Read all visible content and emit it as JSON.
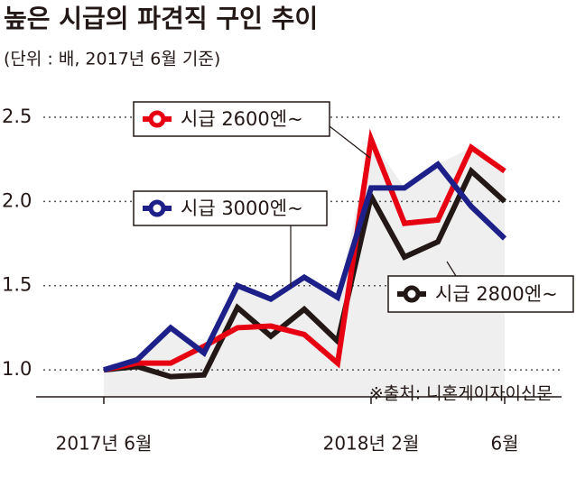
{
  "chart_data": {
    "type": "line",
    "title": "높은 시급의 파견직 구인 추이",
    "subtitle": "(단위 : 배, 2017년 6월 기준)",
    "source": "※출처: 니혼게이자이신문",
    "categories": [
      "2017년 6월",
      null,
      null,
      null,
      null,
      null,
      null,
      null,
      "2018년 2월",
      null,
      null,
      null,
      "6월"
    ],
    "series": [
      {
        "name": "시급 2800엔~",
        "color": "#231815",
        "values": [
          1.0,
          1.02,
          0.96,
          0.97,
          1.37,
          1.2,
          1.36,
          1.17,
          2.03,
          1.67,
          1.76,
          2.18,
          2.0
        ]
      },
      {
        "name": "시급 2600엔~",
        "color": "#e60012",
        "values": [
          1.0,
          1.04,
          1.04,
          1.14,
          1.25,
          1.26,
          1.21,
          1.04,
          2.37,
          1.87,
          1.89,
          2.32,
          2.18
        ]
      },
      {
        "name": "시급 3000엔~",
        "color": "#1d2088",
        "values": [
          1.0,
          1.06,
          1.25,
          1.1,
          1.5,
          1.42,
          1.55,
          1.43,
          2.08,
          2.08,
          2.22,
          1.97,
          1.78
        ]
      }
    ],
    "ylim": [
      0.84,
      2.58
    ],
    "yticks": [
      {
        "value": 1,
        "label": "1.0"
      },
      1.5,
      {
        "value": 2,
        "label": "2.0"
      },
      2.5
    ],
    "grid": true
  }
}
